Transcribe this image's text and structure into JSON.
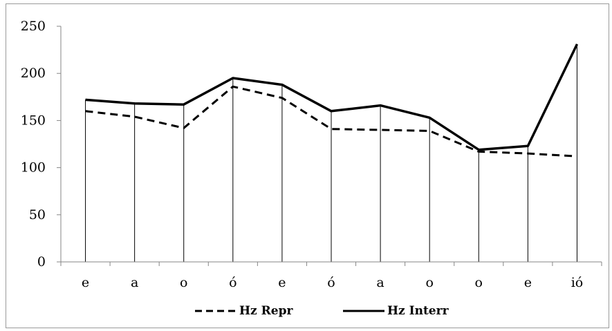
{
  "chart_data": {
    "type": "line",
    "title": "",
    "xlabel": "",
    "ylabel": "",
    "categories": [
      "e",
      "a",
      "o",
      "ó",
      "e",
      "ó",
      "a",
      "o",
      "o",
      "e",
      "ió"
    ],
    "ylim": [
      0,
      250
    ],
    "yticks": [
      "0",
      "50",
      "100",
      "150",
      "200",
      "250"
    ],
    "grid": "vertical drop lines",
    "legend_position": "bottom",
    "series": [
      {
        "name": "Hz Repr",
        "style": "dashed",
        "color": "#000000",
        "values": [
          160,
          154,
          142,
          186,
          174,
          141,
          140,
          139,
          117,
          115,
          112
        ]
      },
      {
        "name": "Hz Interr",
        "style": "solid",
        "color": "#000000",
        "values": [
          172,
          168,
          167,
          195,
          188,
          160,
          166,
          153,
          119,
          123,
          231
        ]
      }
    ]
  }
}
